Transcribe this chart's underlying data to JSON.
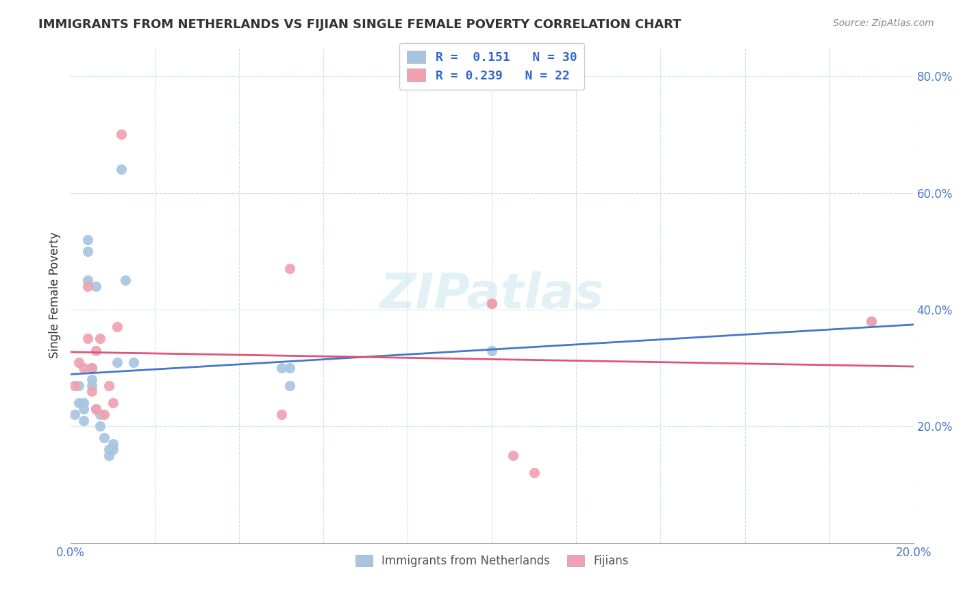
{
  "title": "IMMIGRANTS FROM NETHERLANDS VS FIJIAN SINGLE FEMALE POVERTY CORRELATION CHART",
  "source": "Source: ZipAtlas.com",
  "ylabel": "Single Female Poverty",
  "xlim": [
    0.0,
    0.2
  ],
  "ylim": [
    0.0,
    0.85
  ],
  "blue_color": "#a8c4e0",
  "pink_color": "#f0a0b0",
  "blue_line_color": "#4477cc",
  "pink_line_color": "#dd5577",
  "series1_x": [
    0.001,
    0.002,
    0.002,
    0.003,
    0.003,
    0.003,
    0.004,
    0.004,
    0.004,
    0.005,
    0.005,
    0.005,
    0.006,
    0.006,
    0.007,
    0.007,
    0.008,
    0.009,
    0.009,
    0.01,
    0.01,
    0.011,
    0.012,
    0.013,
    0.015,
    0.05,
    0.052,
    0.052,
    0.1,
    0.19
  ],
  "series1_y": [
    0.22,
    0.27,
    0.24,
    0.24,
    0.21,
    0.23,
    0.52,
    0.5,
    0.45,
    0.27,
    0.28,
    0.3,
    0.44,
    0.23,
    0.22,
    0.2,
    0.18,
    0.16,
    0.15,
    0.17,
    0.16,
    0.31,
    0.64,
    0.45,
    0.31,
    0.3,
    0.3,
    0.27,
    0.33,
    0.38
  ],
  "series2_x": [
    0.001,
    0.002,
    0.003,
    0.004,
    0.004,
    0.005,
    0.005,
    0.006,
    0.006,
    0.007,
    0.008,
    0.009,
    0.01,
    0.011,
    0.012,
    0.05,
    0.052,
    0.1,
    0.1,
    0.105,
    0.11,
    0.19
  ],
  "series2_y": [
    0.27,
    0.31,
    0.3,
    0.44,
    0.35,
    0.3,
    0.26,
    0.23,
    0.33,
    0.35,
    0.22,
    0.27,
    0.24,
    0.37,
    0.7,
    0.22,
    0.47,
    0.41,
    0.41,
    0.15,
    0.12,
    0.38
  ],
  "legend1_label": "R =  0.151   N = 30",
  "legend2_label": "R = 0.239   N = 22",
  "bottom_legend1": "Immigrants from Netherlands",
  "bottom_legend2": "Fijians",
  "tick_color": "#4477cc",
  "grid_color": "#ccddee",
  "title_color": "#333333",
  "source_color": "#888888",
  "watermark_color": "#d0e8f0",
  "watermark_text": "ZIPatlas"
}
